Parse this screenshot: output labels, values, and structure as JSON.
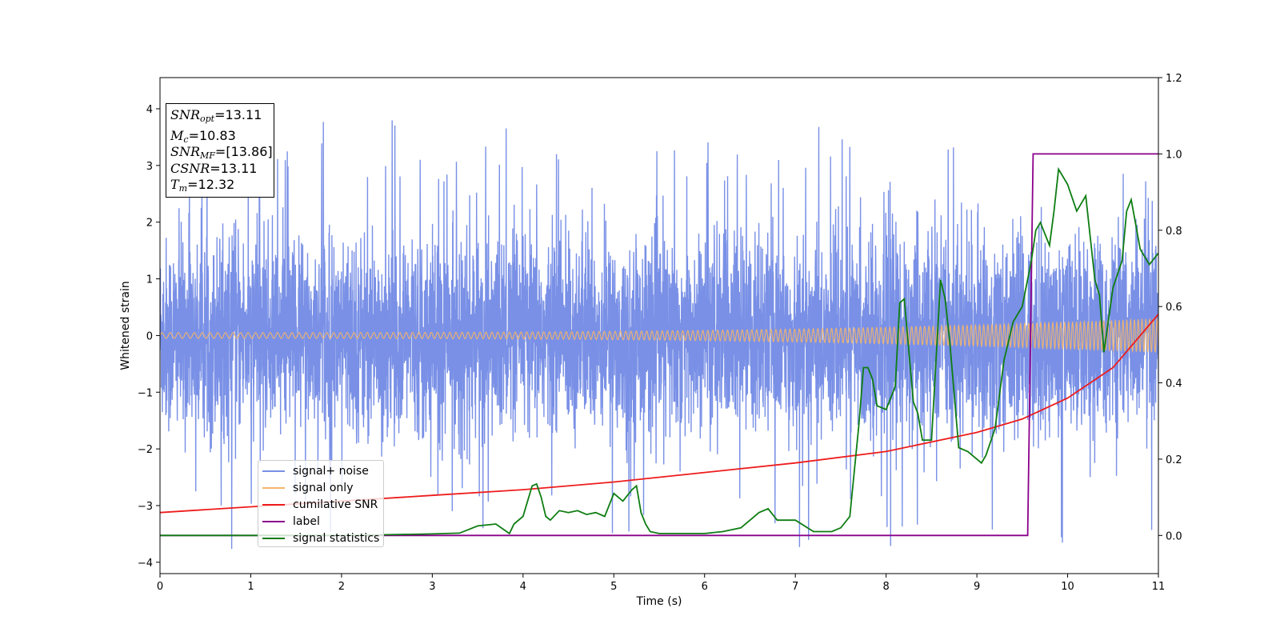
{
  "chart_data": {
    "type": "line",
    "xlabel": "Time (s)",
    "ylabel": "Whitened strain",
    "xlim": [
      0,
      11
    ],
    "ylim": [
      -4.2,
      4.55
    ],
    "y2lim": [
      -0.1,
      1.2
    ],
    "x_ticks": [
      0,
      1,
      2,
      3,
      4,
      5,
      6,
      7,
      8,
      9,
      10,
      11
    ],
    "y_ticks": [
      -4,
      -3,
      -2,
      -1,
      0,
      1,
      2,
      3,
      4
    ],
    "y_tick_labels": [
      "−4",
      "−3",
      "−2",
      "−1",
      "0",
      "1",
      "2",
      "3",
      "4"
    ],
    "y2_ticks": [
      0.0,
      0.2,
      0.4,
      0.6,
      0.8,
      1.0,
      1.2
    ],
    "y2_tick_labels": [
      "0.0",
      "0.2",
      "0.4",
      "0.6",
      "0.8",
      "1.0",
      "1.2"
    ],
    "grid": false,
    "legend_position": "lower-left",
    "series": [
      {
        "name": "signal+ noise",
        "color": "#7990e6",
        "axis": "left",
        "kind": "noise",
        "description_values": {
          "amplitude_typical": 1.6,
          "peak_max": 4.2,
          "peak_min": -3.8
        }
      },
      {
        "name": "signal only",
        "color": "#f4b56a",
        "axis": "left",
        "kind": "chirp",
        "values": {
          "amplitude_start": 0.05,
          "amplitude_end": 0.3
        }
      },
      {
        "name": "cumilative SNR",
        "color": "#ee1c1c",
        "axis": "right",
        "kind": "line",
        "x": [
          0,
          1,
          2,
          3,
          4,
          5,
          6,
          7,
          8,
          9,
          9.5,
          10,
          10.5,
          11
        ],
        "y": [
          0.06,
          0.075,
          0.09,
          0.105,
          0.12,
          0.14,
          0.165,
          0.19,
          0.22,
          0.27,
          0.305,
          0.36,
          0.44,
          0.58
        ]
      },
      {
        "name": "label",
        "color": "#8b008b",
        "axis": "right",
        "kind": "line",
        "x": [
          0,
          9.56,
          9.62,
          11
        ],
        "y": [
          0.0,
          0.0,
          1.0,
          1.0
        ]
      },
      {
        "name": "signal statistics",
        "color": "#0e7d12",
        "axis": "right",
        "kind": "line",
        "x": [
          0,
          1,
          2,
          2.5,
          3,
          3.3,
          3.5,
          3.7,
          3.85,
          3.9,
          4.0,
          4.1,
          4.15,
          4.2,
          4.25,
          4.3,
          4.4,
          4.5,
          4.6,
          4.7,
          4.8,
          4.9,
          5.0,
          5.05,
          5.1,
          5.2,
          5.25,
          5.3,
          5.35,
          5.4,
          5.5,
          5.6,
          5.8,
          6.0,
          6.2,
          6.4,
          6.6,
          6.7,
          6.8,
          7.0,
          7.2,
          7.4,
          7.5,
          7.6,
          7.7,
          7.75,
          7.8,
          7.85,
          7.9,
          8.0,
          8.1,
          8.15,
          8.2,
          8.3,
          8.35,
          8.4,
          8.5,
          8.6,
          8.65,
          8.7,
          8.8,
          8.9,
          9.0,
          9.05,
          9.1,
          9.2,
          9.3,
          9.4,
          9.5,
          9.6,
          9.65,
          9.7,
          9.8,
          9.85,
          9.9,
          10.0,
          10.1,
          10.2,
          10.3,
          10.35,
          10.4,
          10.5,
          10.6,
          10.65,
          10.7,
          10.8,
          10.9,
          11.0
        ],
        "y": [
          0.0,
          0.0,
          0.0,
          0.002,
          0.004,
          0.006,
          0.025,
          0.03,
          0.005,
          0.03,
          0.05,
          0.13,
          0.135,
          0.1,
          0.05,
          0.04,
          0.065,
          0.06,
          0.065,
          0.055,
          0.06,
          0.05,
          0.11,
          0.1,
          0.09,
          0.12,
          0.13,
          0.06,
          0.03,
          0.01,
          0.005,
          0.005,
          0.005,
          0.005,
          0.01,
          0.02,
          0.06,
          0.07,
          0.04,
          0.04,
          0.01,
          0.01,
          0.02,
          0.05,
          0.29,
          0.44,
          0.44,
          0.41,
          0.34,
          0.33,
          0.39,
          0.61,
          0.62,
          0.35,
          0.32,
          0.25,
          0.25,
          0.67,
          0.62,
          0.51,
          0.23,
          0.22,
          0.2,
          0.19,
          0.21,
          0.28,
          0.46,
          0.56,
          0.6,
          0.72,
          0.8,
          0.82,
          0.76,
          0.85,
          0.96,
          0.92,
          0.85,
          0.89,
          0.67,
          0.63,
          0.48,
          0.65,
          0.72,
          0.85,
          0.88,
          0.75,
          0.71,
          0.74
        ]
      }
    ],
    "annotations": {
      "snr_opt": "13.11",
      "mc": "10.83",
      "snr_mf": "[13.86]",
      "csnr": "13.11",
      "tm": "12.32"
    }
  },
  "info_box": {
    "snr_opt_label": "SNR",
    "snr_opt_sub": "opt",
    "snr_opt_value": "=13.11",
    "mc_label": "M",
    "mc_sub": "c",
    "mc_value": "=10.83",
    "snr_mf_label": "SNR",
    "snr_mf_sub": "MF",
    "snr_mf_value": "=[13.86]",
    "csnr_label": "CSNR",
    "csnr_value": "=13.11",
    "tm_label": "T",
    "tm_sub": "m",
    "tm_value": "=12.32"
  },
  "legend": {
    "items": [
      {
        "label": "signal+ noise",
        "color": "#7990e6"
      },
      {
        "label": "signal only",
        "color": "#f4b56a"
      },
      {
        "label": "cumilative SNR",
        "color": "#ee1c1c"
      },
      {
        "label": "label",
        "color": "#8b008b"
      },
      {
        "label": "signal statistics",
        "color": "#0e7d12"
      }
    ]
  }
}
